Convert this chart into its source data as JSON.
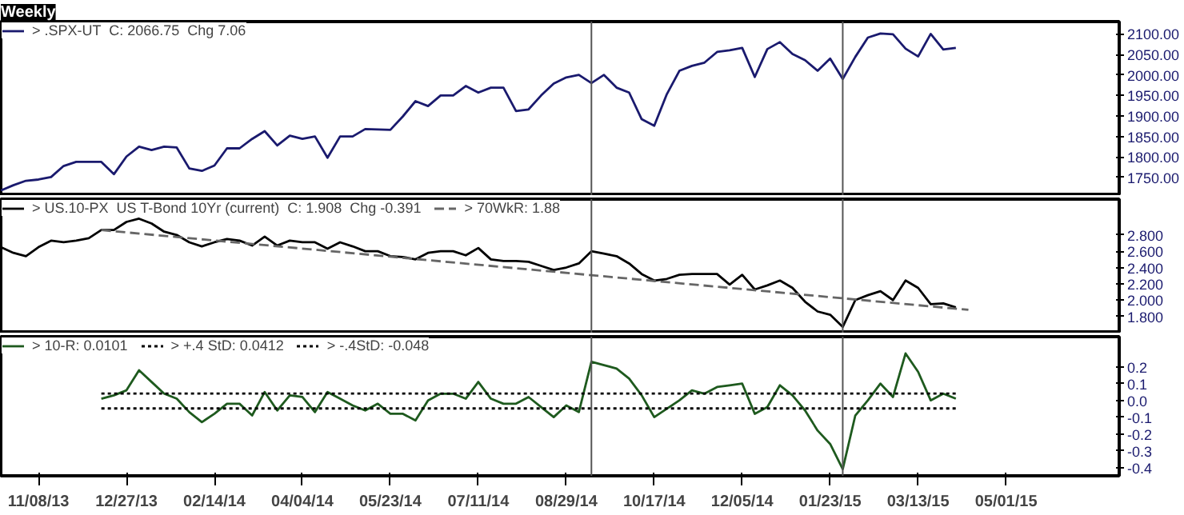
{
  "chart_data": [
    {
      "type": "line",
      "title": "Weekly",
      "legend": "top left",
      "tick_labels": "y",
      "grid": false,
      "x": [
        "2013-10-18",
        "2013-10-25",
        "2013-11-01",
        "2013-11-08",
        "2013-11-15",
        "2013-11-22",
        "2013-11-29",
        "2013-12-06",
        "2013-12-13",
        "2013-12-20",
        "2013-12-27",
        "2014-01-03",
        "2014-01-10",
        "2014-01-17",
        "2014-01-24",
        "2014-01-31",
        "2014-02-07",
        "2014-02-14",
        "2014-02-21",
        "2014-02-28",
        "2014-03-07",
        "2014-03-14",
        "2014-03-21",
        "2014-03-28",
        "2014-04-04",
        "2014-04-11",
        "2014-04-18",
        "2014-04-25",
        "2014-05-02",
        "2014-05-09",
        "2014-05-16",
        "2014-05-23",
        "2014-05-30",
        "2014-06-06",
        "2014-06-13",
        "2014-06-20",
        "2014-06-27",
        "2014-07-04",
        "2014-07-11",
        "2014-07-18",
        "2014-07-25",
        "2014-08-01",
        "2014-08-08",
        "2014-08-15",
        "2014-08-22",
        "2014-08-29",
        "2014-09-05",
        "2014-09-12",
        "2014-09-19",
        "2014-09-26",
        "2014-10-03",
        "2014-10-10",
        "2014-10-17",
        "2014-10-24",
        "2014-10-31",
        "2014-11-07",
        "2014-11-14",
        "2014-11-21",
        "2014-11-28",
        "2014-12-05",
        "2014-12-12",
        "2014-12-19",
        "2014-12-26",
        "2015-01-02",
        "2015-01-09",
        "2015-01-16",
        "2015-01-23",
        "2015-01-30",
        "2015-02-06",
        "2015-02-13",
        "2015-02-20",
        "2015-02-27",
        "2015-03-06",
        "2015-03-13",
        "2015-03-20",
        "2015-03-27",
        "2015-04-03"
      ],
      "xlim": [
        "2013-10-18",
        "2015-07-03"
      ],
      "ylim": [
        1705,
        2130
      ],
      "yticks": [
        {
          "value": 1750,
          "label": "1750.00"
        },
        {
          "value": 1800,
          "label": "1800.00"
        },
        {
          "value": 1850,
          "label": "1850.00"
        },
        {
          "value": 1900,
          "label": "1900.00"
        },
        {
          "value": 1950,
          "label": "1950.00"
        },
        {
          "value": 2000,
          "label": "2000.00"
        },
        {
          "value": 2050,
          "label": "2050.00"
        },
        {
          "value": 2100,
          "label": "2100.00"
        }
      ],
      "ref_lines": [
        {
          "axis": "x",
          "value": "2014-09-12",
          "color": "#555555"
        },
        {
          "axis": "x",
          "value": "2015-01-30",
          "color": "#555555"
        }
      ],
      "series": [
        {
          "name": "> .SPX-UT  C: 2066.75  Chg 7.06",
          "color": "#1a1a6e",
          "values": [
            1718,
            1731,
            1742,
            1745,
            1751,
            1778,
            1788,
            1788,
            1788,
            1758,
            1801,
            1825,
            1817,
            1825,
            1823,
            1772,
            1766,
            1779,
            1821,
            1821,
            1844,
            1863,
            1828,
            1852,
            1844,
            1850,
            1798,
            1850,
            1850,
            1868,
            1867,
            1866,
            1899,
            1936,
            1924,
            1950,
            1950,
            1973,
            1957,
            1969,
            1969,
            1912,
            1916,
            1950,
            1979,
            1994,
            2000,
            1980,
            2000,
            1969,
            1957,
            1892,
            1876,
            1953,
            2010,
            2022,
            2030,
            2056,
            2060,
            2066,
            1995,
            2063,
            2080,
            2051,
            2036,
            2010,
            2040,
            1990,
            2044,
            2091,
            2101,
            2099,
            2064,
            2045,
            2100,
            2062,
            2066
          ]
        }
      ]
    },
    {
      "type": "line",
      "legend": "top left",
      "tick_labels": "y",
      "grid": false,
      "x": [
        "2013-10-18",
        "2013-10-25",
        "2013-11-01",
        "2013-11-08",
        "2013-11-15",
        "2013-11-22",
        "2013-11-29",
        "2013-12-06",
        "2013-12-13",
        "2013-12-20",
        "2013-12-27",
        "2014-01-03",
        "2014-01-10",
        "2014-01-17",
        "2014-01-24",
        "2014-01-31",
        "2014-02-07",
        "2014-02-14",
        "2014-02-21",
        "2014-02-28",
        "2014-03-07",
        "2014-03-14",
        "2014-03-21",
        "2014-03-28",
        "2014-04-04",
        "2014-04-11",
        "2014-04-18",
        "2014-04-25",
        "2014-05-02",
        "2014-05-09",
        "2014-05-16",
        "2014-05-23",
        "2014-05-30",
        "2014-06-06",
        "2014-06-13",
        "2014-06-20",
        "2014-06-27",
        "2014-07-04",
        "2014-07-11",
        "2014-07-18",
        "2014-07-25",
        "2014-08-01",
        "2014-08-08",
        "2014-08-15",
        "2014-08-22",
        "2014-08-29",
        "2014-09-05",
        "2014-09-12",
        "2014-09-19",
        "2014-09-26",
        "2014-10-03",
        "2014-10-10",
        "2014-10-17",
        "2014-10-24",
        "2014-10-31",
        "2014-11-07",
        "2014-11-14",
        "2014-11-21",
        "2014-11-28",
        "2014-12-05",
        "2014-12-12",
        "2014-12-19",
        "2014-12-26",
        "2015-01-02",
        "2015-01-09",
        "2015-01-16",
        "2015-01-23",
        "2015-01-30",
        "2015-02-06",
        "2015-02-13",
        "2015-02-20",
        "2015-02-27",
        "2015-03-06",
        "2015-03-13",
        "2015-03-20",
        "2015-03-27",
        "2015-04-03"
      ],
      "xlim": [
        "2013-10-18",
        "2015-07-03"
      ],
      "ylim": [
        1.59,
        3.24
      ],
      "yticks": [
        {
          "value": 1.8,
          "label": "1.800"
        },
        {
          "value": 2.0,
          "label": "2.000"
        },
        {
          "value": 2.2,
          "label": "2.200"
        },
        {
          "value": 2.4,
          "label": "2.400"
        },
        {
          "value": 2.6,
          "label": "2.600"
        },
        {
          "value": 2.8,
          "label": "2.800"
        }
      ],
      "ref_lines": [
        {
          "axis": "x",
          "value": "2014-09-12",
          "color": "#555555"
        },
        {
          "axis": "x",
          "value": "2015-01-30",
          "color": "#555555"
        }
      ],
      "series": [
        {
          "name": "> US.10-PX  US T-Bond 10Yr (current)  C: 1.908  Chg -0.391",
          "color": "#000000",
          "values": [
            2.65,
            2.58,
            2.54,
            2.65,
            2.73,
            2.71,
            2.73,
            2.76,
            2.86,
            2.86,
            2.96,
            3.0,
            2.94,
            2.84,
            2.8,
            2.71,
            2.66,
            2.71,
            2.75,
            2.73,
            2.67,
            2.78,
            2.67,
            2.73,
            2.71,
            2.71,
            2.63,
            2.71,
            2.66,
            2.6,
            2.6,
            2.54,
            2.53,
            2.5,
            2.58,
            2.6,
            2.6,
            2.55,
            2.64,
            2.5,
            2.48,
            2.48,
            2.47,
            2.42,
            2.37,
            2.4,
            2.45,
            2.6,
            2.57,
            2.54,
            2.45,
            2.32,
            2.24,
            2.26,
            2.31,
            2.32,
            2.32,
            2.32,
            2.19,
            2.31,
            2.13,
            2.18,
            2.24,
            2.15,
            1.98,
            1.86,
            1.82,
            1.67,
            2.0,
            2.06,
            2.11,
            2.0,
            2.24,
            2.15,
            1.95,
            1.96,
            1.91
          ]
        },
        {
          "name": "> 70WkR: 1.88",
          "color": "#666666",
          "line_style": "dashed",
          "x": [
            "2013-12-13",
            "2015-04-10"
          ],
          "values": [
            2.86,
            1.88
          ]
        }
      ]
    },
    {
      "type": "line",
      "legend": "top left",
      "grid": false,
      "x": [
        "2013-12-13",
        "2013-12-20",
        "2013-12-27",
        "2014-01-03",
        "2014-01-10",
        "2014-01-17",
        "2014-01-24",
        "2014-01-31",
        "2014-02-07",
        "2014-02-14",
        "2014-02-21",
        "2014-02-28",
        "2014-03-07",
        "2014-03-14",
        "2014-03-21",
        "2014-03-28",
        "2014-04-04",
        "2014-04-11",
        "2014-04-18",
        "2014-04-25",
        "2014-05-02",
        "2014-05-09",
        "2014-05-16",
        "2014-05-23",
        "2014-05-30",
        "2014-06-06",
        "2014-06-13",
        "2014-06-20",
        "2014-06-27",
        "2014-07-04",
        "2014-07-11",
        "2014-07-18",
        "2014-07-25",
        "2014-08-01",
        "2014-08-08",
        "2014-08-15",
        "2014-08-22",
        "2014-08-29",
        "2014-09-05",
        "2014-09-12",
        "2014-09-19",
        "2014-09-26",
        "2014-10-03",
        "2014-10-10",
        "2014-10-17",
        "2014-10-24",
        "2014-10-31",
        "2014-11-07",
        "2014-11-14",
        "2014-11-21",
        "2014-11-28",
        "2014-12-05",
        "2014-12-12",
        "2014-12-19",
        "2014-12-26",
        "2015-01-02",
        "2015-01-09",
        "2015-01-16",
        "2015-01-23",
        "2015-01-30",
        "2015-02-06",
        "2015-02-13",
        "2015-02-20",
        "2015-02-27",
        "2015-03-06",
        "2015-03-13",
        "2015-03-20",
        "2015-03-27",
        "2015-04-03"
      ],
      "xlim": [
        "2013-10-18",
        "2015-07-03"
      ],
      "xticks": [
        {
          "value": "2013-11-08",
          "label": "11/08/13"
        },
        {
          "value": "2013-12-27",
          "label": "12/27/13"
        },
        {
          "value": "2014-02-14",
          "label": "02/14/14"
        },
        {
          "value": "2014-04-04",
          "label": "04/04/14"
        },
        {
          "value": "2014-05-23",
          "label": "05/23/14"
        },
        {
          "value": "2014-07-11",
          "label": "07/11/14"
        },
        {
          "value": "2014-08-29",
          "label": "08/29/14"
        },
        {
          "value": "2014-10-17",
          "label": "10/17/14"
        },
        {
          "value": "2014-12-05",
          "label": "12/05/14"
        },
        {
          "value": "2015-01-23",
          "label": "01/23/15"
        },
        {
          "value": "2015-03-13",
          "label": "03/13/15"
        },
        {
          "value": "2015-05-01",
          "label": "05/01/15"
        }
      ],
      "ylim": [
        -0.45,
        0.38
      ],
      "yticks": [
        -0.4,
        -0.3,
        -0.2,
        -0.1,
        {
          "value": 0,
          "label": "0.0"
        },
        0.1,
        0.2
      ],
      "ref_lines": [
        {
          "axis": "x",
          "value": "2014-09-12",
          "color": "#555555"
        },
        {
          "axis": "x",
          "value": "2015-01-30",
          "color": "#555555"
        }
      ],
      "series": [
        {
          "name": "> 10-R: 0.0101",
          "color": "#1e5a1e",
          "values": [
            0.01,
            0.03,
            0.06,
            0.18,
            0.11,
            0.04,
            0.01,
            -0.07,
            -0.13,
            -0.08,
            -0.02,
            -0.02,
            -0.09,
            0.05,
            -0.06,
            0.03,
            0.02,
            -0.07,
            0.05,
            0.01,
            -0.03,
            -0.06,
            -0.02,
            -0.08,
            -0.08,
            -0.12,
            0.0,
            0.04,
            0.04,
            0.01,
            0.11,
            0.01,
            -0.02,
            -0.02,
            0.02,
            -0.04,
            -0.1,
            -0.03,
            -0.07,
            0.23,
            0.21,
            0.19,
            0.13,
            0.03,
            -0.1,
            -0.05,
            0.0,
            0.06,
            0.04,
            0.08,
            0.09,
            0.1,
            -0.08,
            -0.04,
            0.09,
            0.03,
            -0.06,
            -0.18,
            -0.26,
            -0.41,
            -0.09,
            0.0,
            0.1,
            0.02,
            0.28,
            0.17,
            0.0,
            0.04,
            0.01
          ]
        },
        {
          "name": "> +.4 StD: 0.0412",
          "color": "#000000",
          "line_style": "dotted",
          "x": [
            "2013-12-13",
            "2015-04-03"
          ],
          "values": [
            0.0412,
            0.0412
          ]
        },
        {
          "name": "> -.4StD: -0.048",
          "color": "#000000",
          "line_style": "dotted",
          "x": [
            "2013-12-13",
            "2015-04-03"
          ],
          "values": [
            -0.048,
            -0.048
          ]
        }
      ]
    }
  ]
}
